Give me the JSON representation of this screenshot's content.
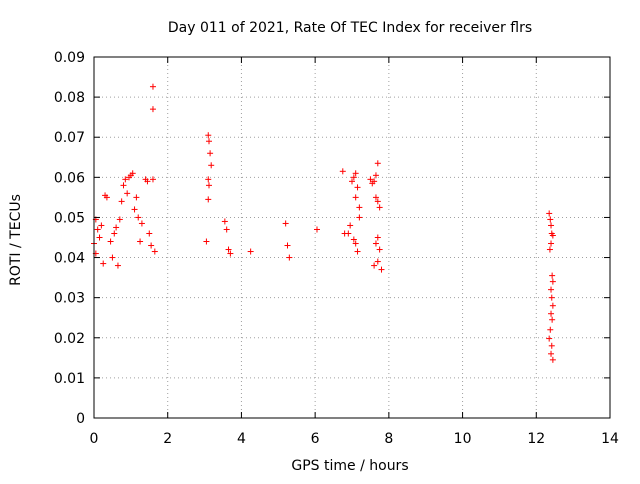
{
  "chart_data": {
    "type": "scatter",
    "title": "Day 011 of 2021, Rate Of TEC Index for receiver flrs",
    "xlabel": "GPS time / hours",
    "ylabel": "ROTI / TECUs",
    "xlim": [
      0,
      14
    ],
    "ylim": [
      0,
      0.09
    ],
    "xticks": [
      0,
      2,
      4,
      6,
      8,
      10,
      12,
      14
    ],
    "yticks": [
      0,
      0.01,
      0.02,
      0.03,
      0.04,
      0.05,
      0.06,
      0.07,
      0.08,
      0.09
    ],
    "xtick_labels": [
      "0",
      "2",
      "4",
      "6",
      "8",
      "10",
      "12",
      "14"
    ],
    "ytick_labels": [
      "0",
      "0.01",
      "0.02",
      "0.03",
      "0.04",
      "0.05",
      "0.06",
      "0.07",
      "0.08",
      "0.09"
    ],
    "grid": true,
    "marker": "+",
    "color": "#ff0000",
    "points": [
      [
        1.6,
        0.0826
      ],
      [
        1.6,
        0.077
      ],
      [
        3.1,
        0.0705
      ],
      [
        3.12,
        0.069
      ],
      [
        3.15,
        0.066
      ],
      [
        3.18,
        0.063
      ],
      [
        3.1,
        0.0595
      ],
      [
        3.12,
        0.058
      ],
      [
        3.1,
        0.0545
      ],
      [
        3.05,
        0.044
      ],
      [
        3.55,
        0.049
      ],
      [
        3.6,
        0.047
      ],
      [
        3.65,
        0.042
      ],
      [
        3.7,
        0.041
      ],
      [
        0.05,
        0.0495
      ],
      [
        0.1,
        0.047
      ],
      [
        0.15,
        0.045
      ],
      [
        0.2,
        0.048
      ],
      [
        0.3,
        0.0555
      ],
      [
        0.35,
        0.055
      ],
      [
        0.45,
        0.044
      ],
      [
        0.55,
        0.046
      ],
      [
        0.6,
        0.0475
      ],
      [
        0.7,
        0.0495
      ],
      [
        0.75,
        0.054
      ],
      [
        0.8,
        0.058
      ],
      [
        0.85,
        0.0595
      ],
      [
        0.9,
        0.056
      ],
      [
        0.95,
        0.06
      ],
      [
        1.0,
        0.0605
      ],
      [
        1.05,
        0.061
      ],
      [
        1.1,
        0.052
      ],
      [
        1.15,
        0.055
      ],
      [
        1.2,
        0.05
      ],
      [
        1.3,
        0.0485
      ],
      [
        1.4,
        0.0595
      ],
      [
        1.45,
        0.059
      ],
      [
        1.5,
        0.046
      ],
      [
        1.55,
        0.043
      ],
      [
        1.6,
        0.0595
      ],
      [
        1.65,
        0.0415
      ],
      [
        0.0,
        0.0435
      ],
      [
        0.05,
        0.041
      ],
      [
        0.25,
        0.0385
      ],
      [
        0.5,
        0.04
      ],
      [
        0.65,
        0.038
      ],
      [
        1.25,
        0.044
      ],
      [
        4.25,
        0.0415
      ],
      [
        5.2,
        0.0485
      ],
      [
        5.25,
        0.043
      ],
      [
        5.3,
        0.04
      ],
      [
        6.05,
        0.047
      ],
      [
        6.75,
        0.0615
      ],
      [
        6.8,
        0.046
      ],
      [
        7.0,
        0.059
      ],
      [
        7.05,
        0.06
      ],
      [
        7.1,
        0.061
      ],
      [
        7.15,
        0.0575
      ],
      [
        7.1,
        0.055
      ],
      [
        7.2,
        0.0525
      ],
      [
        7.2,
        0.05
      ],
      [
        7.1,
        0.0435
      ],
      [
        7.05,
        0.0445
      ],
      [
        7.15,
        0.0415
      ],
      [
        7.5,
        0.0595
      ],
      [
        7.55,
        0.0585
      ],
      [
        7.6,
        0.059
      ],
      [
        7.65,
        0.0605
      ],
      [
        7.7,
        0.0635
      ],
      [
        7.65,
        0.055
      ],
      [
        7.7,
        0.054
      ],
      [
        7.75,
        0.0525
      ],
      [
        7.7,
        0.045
      ],
      [
        7.65,
        0.0435
      ],
      [
        7.75,
        0.042
      ],
      [
        7.7,
        0.039
      ],
      [
        7.6,
        0.038
      ],
      [
        7.8,
        0.037
      ],
      [
        6.9,
        0.046
      ],
      [
        6.95,
        0.048
      ],
      [
        12.35,
        0.051
      ],
      [
        12.38,
        0.0495
      ],
      [
        12.4,
        0.048
      ],
      [
        12.42,
        0.046
      ],
      [
        12.45,
        0.0455
      ],
      [
        12.4,
        0.0435
      ],
      [
        12.37,
        0.042
      ],
      [
        12.43,
        0.0355
      ],
      [
        12.45,
        0.034
      ],
      [
        12.4,
        0.032
      ],
      [
        12.42,
        0.03
      ],
      [
        12.45,
        0.028
      ],
      [
        12.4,
        0.026
      ],
      [
        12.43,
        0.0245
      ],
      [
        12.38,
        0.022
      ],
      [
        12.35,
        0.0198
      ],
      [
        12.42,
        0.018
      ],
      [
        12.4,
        0.016
      ],
      [
        12.45,
        0.0145
      ]
    ]
  }
}
